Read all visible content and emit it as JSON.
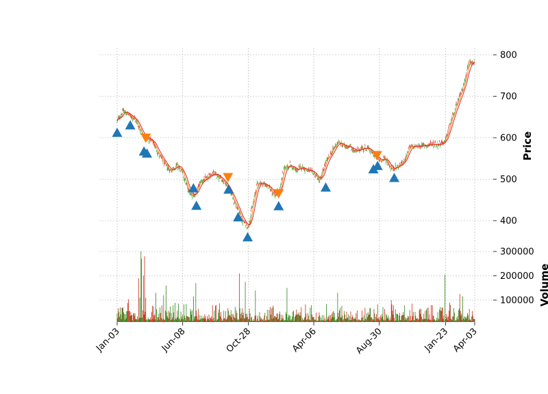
{
  "chart_data": {
    "type": "candlestick",
    "title": "",
    "panels": [
      {
        "name": "price",
        "ylabel": "Price",
        "ylim": [
          345,
          820
        ],
        "yticks": [
          400,
          500,
          600,
          700,
          800
        ]
      },
      {
        "name": "volume",
        "ylabel": "Volume",
        "ylim": [
          0,
          300000
        ],
        "yticks": [
          100000,
          200000,
          300000
        ],
        "ytick_labels": [
          "100000",
          "200000",
          "300000"
        ]
      }
    ],
    "x_ticks": [
      {
        "label": "Jan-03",
        "index": 0
      },
      {
        "label": "Jun-08",
        "index": 110
      },
      {
        "label": "Oct-28",
        "index": 220
      },
      {
        "label": "Apr-06",
        "index": 330
      },
      {
        "label": "Aug-30",
        "index": 440
      },
      {
        "label": "Jan-23",
        "index": 551
      },
      {
        "label": "Apr-03",
        "index": 600
      }
    ],
    "num_bars": 601,
    "grid": true,
    "colors": {
      "up": "#2ca02c",
      "down": "#d62728",
      "volume_up": "#1a7a00",
      "volume_down": "#c21a00",
      "ma_fast": "#ff7f0e",
      "ma_slow": "#d62728",
      "buy_marker": "#1f77b4",
      "sell_marker": "#ff7f0e",
      "grid": "#b0b0b0"
    },
    "price_anchors": [
      [
        0,
        640
      ],
      [
        10,
        665
      ],
      [
        20,
        655
      ],
      [
        30,
        645
      ],
      [
        40,
        615
      ],
      [
        50,
        598
      ],
      [
        60,
        590
      ],
      [
        70,
        560
      ],
      [
        80,
        535
      ],
      [
        90,
        520
      ],
      [
        100,
        535
      ],
      [
        110,
        515
      ],
      [
        120,
        470
      ],
      [
        130,
        460
      ],
      [
        140,
        495
      ],
      [
        150,
        500
      ],
      [
        160,
        515
      ],
      [
        170,
        505
      ],
      [
        180,
        495
      ],
      [
        190,
        470
      ],
      [
        200,
        435
      ],
      [
        210,
        400
      ],
      [
        220,
        385
      ],
      [
        225,
        420
      ],
      [
        235,
        490
      ],
      [
        245,
        490
      ],
      [
        255,
        480
      ],
      [
        265,
        460
      ],
      [
        272,
        470
      ],
      [
        280,
        525
      ],
      [
        290,
        535
      ],
      [
        300,
        520
      ],
      [
        310,
        530
      ],
      [
        320,
        520
      ],
      [
        330,
        515
      ],
      [
        340,
        495
      ],
      [
        350,
        540
      ],
      [
        360,
        565
      ],
      [
        370,
        590
      ],
      [
        380,
        580
      ],
      [
        390,
        580
      ],
      [
        400,
        565
      ],
      [
        410,
        575
      ],
      [
        420,
        575
      ],
      [
        430,
        560
      ],
      [
        440,
        545
      ],
      [
        450,
        550
      ],
      [
        460,
        525
      ],
      [
        470,
        530
      ],
      [
        480,
        540
      ],
      [
        490,
        575
      ],
      [
        500,
        580
      ],
      [
        510,
        580
      ],
      [
        520,
        582
      ],
      [
        530,
        585
      ],
      [
        540,
        585
      ],
      [
        550,
        590
      ],
      [
        560,
        640
      ],
      [
        570,
        680
      ],
      [
        580,
        720
      ],
      [
        590,
        780
      ],
      [
        600,
        785
      ]
    ],
    "buy_markers": [
      {
        "index": 0,
        "price": 612
      },
      {
        "index": 22,
        "price": 630
      },
      {
        "index": 45,
        "price": 567
      },
      {
        "index": 50,
        "price": 562
      },
      {
        "index": 128,
        "price": 478
      },
      {
        "index": 133,
        "price": 436
      },
      {
        "index": 187,
        "price": 475
      },
      {
        "index": 203,
        "price": 408
      },
      {
        "index": 219,
        "price": 360
      },
      {
        "index": 271,
        "price": 435
      },
      {
        "index": 350,
        "price": 480
      },
      {
        "index": 430,
        "price": 524
      },
      {
        "index": 437,
        "price": 532
      },
      {
        "index": 465,
        "price": 503
      }
    ],
    "sell_markers": [
      {
        "index": 48,
        "price": 600
      },
      {
        "index": 186,
        "price": 505
      },
      {
        "index": 271,
        "price": 466
      },
      {
        "index": 436,
        "price": 558
      }
    ],
    "volume_spikes": [
      {
        "index": 36,
        "value": 190000
      },
      {
        "index": 38,
        "value": 110000
      },
      {
        "index": 40,
        "value": 300000
      },
      {
        "index": 41,
        "value": 270000
      },
      {
        "index": 44,
        "value": 200000
      },
      {
        "index": 46,
        "value": 280000
      },
      {
        "index": 48,
        "value": 110000
      },
      {
        "index": 65,
        "value": 130000
      },
      {
        "index": 82,
        "value": 160000
      },
      {
        "index": 78,
        "value": 120000
      },
      {
        "index": 128,
        "value": 115000
      },
      {
        "index": 132,
        "value": 170000
      },
      {
        "index": 205,
        "value": 210000
      },
      {
        "index": 215,
        "value": 175000
      },
      {
        "index": 232,
        "value": 140000
      },
      {
        "index": 285,
        "value": 150000
      },
      {
        "index": 370,
        "value": 130000
      },
      {
        "index": 460,
        "value": 100000
      },
      {
        "index": 550,
        "value": 205000
      },
      {
        "index": 558,
        "value": 90000
      },
      {
        "index": 575,
        "value": 125000
      },
      {
        "index": 580,
        "value": 115000
      }
    ]
  }
}
